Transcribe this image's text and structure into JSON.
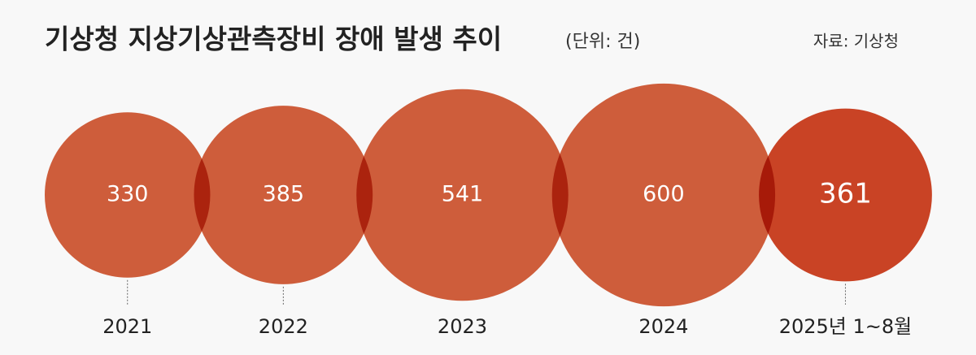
{
  "chart_data": {
    "type": "bubble",
    "title": "기상청 지상기상관측장비 장애 발생 추이",
    "subtitle": "(단위: 건)",
    "source": "자료: 기상청",
    "categories": [
      "2021",
      "2022",
      "2023",
      "2024",
      "2025년 1~8월"
    ],
    "values": [
      330,
      385,
      541,
      600,
      361
    ],
    "colors": [
      "#d4603c",
      "#d4603c",
      "#d4603c",
      "#d4603c",
      "#cf4526"
    ]
  }
}
